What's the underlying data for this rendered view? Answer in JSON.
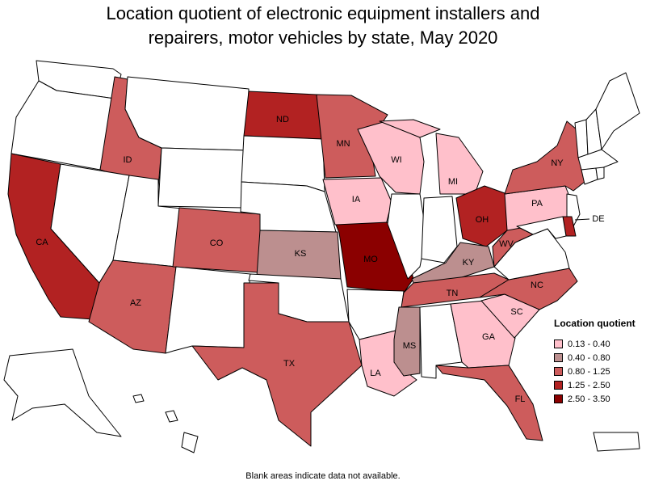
{
  "title_line1": "Location quotient of electronic equipment installers and",
  "title_line2": "repairers, motor vehicles by state, May 2020",
  "legend": {
    "title": "Location quotient",
    "bins": [
      {
        "label": "0.13 - 0.40",
        "color": "#ffc0cb"
      },
      {
        "label": "0.40 - 0.80",
        "color": "#bc8f8f"
      },
      {
        "label": "0.80 - 1.25",
        "color": "#cd5c5c"
      },
      {
        "label": "1.25 - 2.50",
        "color": "#b22222"
      },
      {
        "label": "2.50 - 3.50",
        "color": "#8b0000"
      }
    ]
  },
  "no_data_color": "#ffffff",
  "footnote": "Blank areas indicate data not available.",
  "states": [
    {
      "code": "WA",
      "bin": null
    },
    {
      "code": "OR",
      "bin": null
    },
    {
      "code": "CA",
      "bin": 3,
      "label": "CA"
    },
    {
      "code": "ID",
      "bin": 2,
      "label": "ID"
    },
    {
      "code": "NV",
      "bin": null
    },
    {
      "code": "MT",
      "bin": null
    },
    {
      "code": "WY",
      "bin": null
    },
    {
      "code": "UT",
      "bin": null
    },
    {
      "code": "AZ",
      "bin": 2,
      "label": "AZ"
    },
    {
      "code": "CO",
      "bin": 2,
      "label": "CO"
    },
    {
      "code": "NM",
      "bin": null
    },
    {
      "code": "ND",
      "bin": 3,
      "label": "ND"
    },
    {
      "code": "SD",
      "bin": null
    },
    {
      "code": "NE",
      "bin": null
    },
    {
      "code": "KS",
      "bin": 1,
      "label": "KS"
    },
    {
      "code": "OK",
      "bin": null
    },
    {
      "code": "TX",
      "bin": 2,
      "label": "TX"
    },
    {
      "code": "MN",
      "bin": 2,
      "label": "MN"
    },
    {
      "code": "IA",
      "bin": 0,
      "label": "IA"
    },
    {
      "code": "MO",
      "bin": 4,
      "label": "MO"
    },
    {
      "code": "AR",
      "bin": null
    },
    {
      "code": "LA",
      "bin": 0,
      "label": "LA"
    },
    {
      "code": "WI",
      "bin": 0,
      "label": "WI"
    },
    {
      "code": "IL",
      "bin": null
    },
    {
      "code": "MI",
      "bin": 0,
      "label": "MI"
    },
    {
      "code": "IN",
      "bin": null
    },
    {
      "code": "OH",
      "bin": 3,
      "label": "OH"
    },
    {
      "code": "KY",
      "bin": 1,
      "label": "KY"
    },
    {
      "code": "TN",
      "bin": 2,
      "label": "TN"
    },
    {
      "code": "MS",
      "bin": 1,
      "label": "MS"
    },
    {
      "code": "AL",
      "bin": null
    },
    {
      "code": "GA",
      "bin": 0,
      "label": "GA"
    },
    {
      "code": "FL",
      "bin": 2,
      "label": "FL"
    },
    {
      "code": "SC",
      "bin": 0,
      "label": "SC"
    },
    {
      "code": "NC",
      "bin": 2,
      "label": "NC"
    },
    {
      "code": "VA",
      "bin": null
    },
    {
      "code": "WV",
      "bin": 2,
      "label": "WV"
    },
    {
      "code": "PA",
      "bin": 0,
      "label": "PA"
    },
    {
      "code": "NY",
      "bin": 2,
      "label": "NY"
    },
    {
      "code": "NJ",
      "bin": null
    },
    {
      "code": "DE",
      "bin": 3,
      "label": "DE"
    },
    {
      "code": "MD",
      "bin": null
    },
    {
      "code": "VT",
      "bin": null
    },
    {
      "code": "NH",
      "bin": null
    },
    {
      "code": "ME",
      "bin": null
    },
    {
      "code": "MA",
      "bin": null
    },
    {
      "code": "CT",
      "bin": null
    },
    {
      "code": "RI",
      "bin": null
    },
    {
      "code": "AK",
      "bin": null
    },
    {
      "code": "HI",
      "bin": null
    },
    {
      "code": "PR",
      "bin": null
    }
  ]
}
